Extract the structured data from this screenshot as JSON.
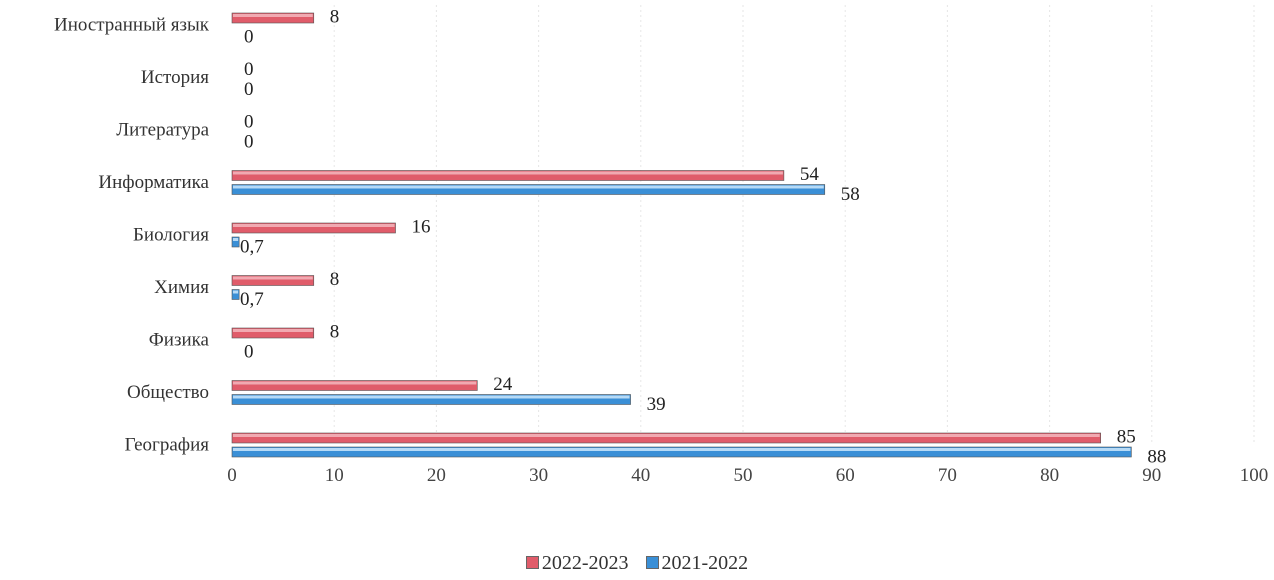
{
  "chart_data": {
    "type": "bar",
    "orientation": "horizontal",
    "categories": [
      "Иностранный язык",
      "История",
      "Литература",
      "Информатика",
      "Биология",
      "Химия",
      "Физика",
      "Общество",
      "География"
    ],
    "series": [
      {
        "name": "2022-2023",
        "color": "#e05c6a",
        "values": [
          8,
          0,
          0,
          54,
          16,
          8,
          8,
          24,
          85
        ],
        "labels": [
          "8",
          "0",
          "0",
          "54",
          "16",
          "8",
          "8",
          "24",
          "85"
        ]
      },
      {
        "name": "2021-2022",
        "color": "#3a8fd6",
        "values": [
          0,
          0,
          0,
          58,
          0.7,
          0.7,
          0,
          39,
          88
        ],
        "labels": [
          "0",
          "0",
          "0",
          "58",
          "0,7",
          "0,7",
          "0",
          "39",
          "88"
        ]
      }
    ],
    "xlim": [
      0,
      100
    ],
    "x_ticks": [
      "0",
      "10",
      "20",
      "30",
      "40",
      "50",
      "60",
      "70",
      "80",
      "90",
      "100"
    ],
    "grid": true,
    "legend_position": "bottom"
  }
}
